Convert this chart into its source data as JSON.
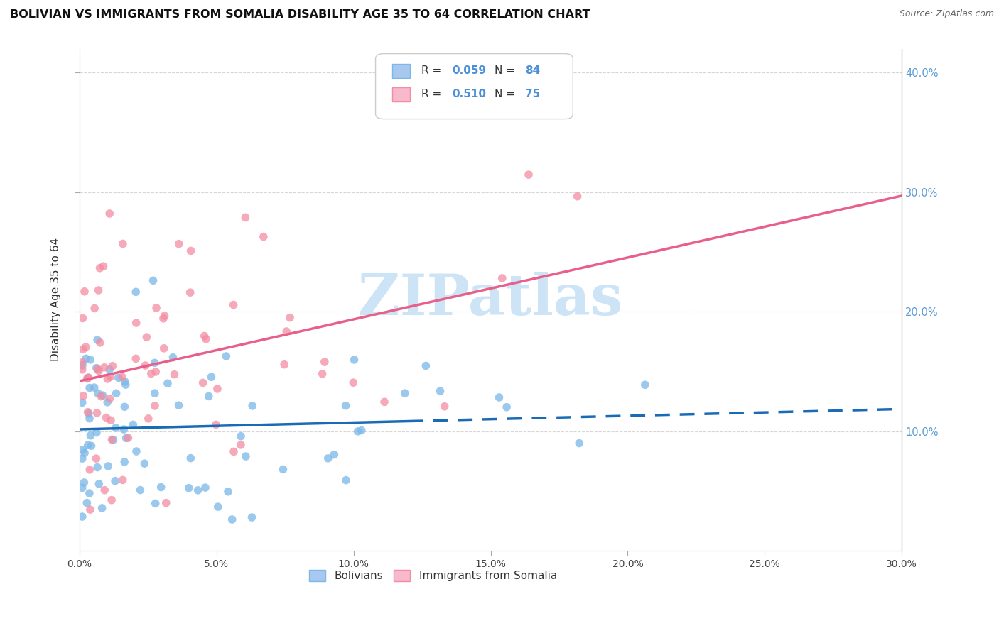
{
  "title": "BOLIVIAN VS IMMIGRANTS FROM SOMALIA DISABILITY AGE 35 TO 64 CORRELATION CHART",
  "source": "Source: ZipAtlas.com",
  "ylabel": "Disability Age 35 to 64",
  "x_min": 0.0,
  "x_max": 0.3,
  "y_min": 0.0,
  "y_max": 0.42,
  "x_ticks": [
    0.0,
    0.05,
    0.1,
    0.15,
    0.2,
    0.25,
    0.3
  ],
  "x_tick_labels": [
    "0.0%",
    "5.0%",
    "10.0%",
    "15.0%",
    "20.0%",
    "25.0%",
    "30.0%"
  ],
  "y_ticks": [
    0.1,
    0.2,
    0.3,
    0.4
  ],
  "y_tick_labels": [
    "10.0%",
    "20.0%",
    "30.0%",
    "40.0%"
  ],
  "bolivians_color": "#7ab8e8",
  "somalia_color": "#f48ca0",
  "trend_blue_color": "#1a6bb5",
  "trend_pink_color": "#e8608a",
  "watermark": "ZIPatlas",
  "watermark_color": "#cce4f5",
  "R_bolivians": 0.059,
  "N_bolivians": 84,
  "R_somalia": 0.51,
  "N_somalia": 75,
  "bolivians_seed": 42,
  "somalia_seed": 77,
  "legend_blue_patch": "#a8c8f0",
  "legend_pink_patch": "#f8b8ce",
  "grid_color": "#cccccc",
  "tick_color": "#5b9bd5"
}
